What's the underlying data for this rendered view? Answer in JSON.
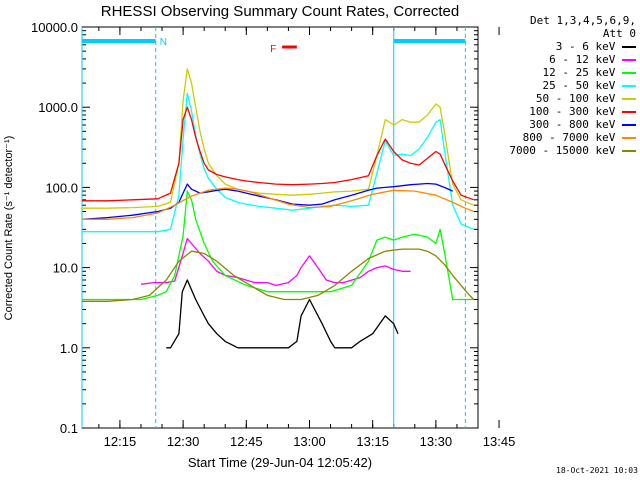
{
  "chart_data": {
    "type": "line",
    "title": "RHESSI Observing Summary Count Rates, Corrected",
    "xlabel": "Start Time (29-Jun-04 12:05:42)",
    "ylabel": "Corrected Count Rate (s⁻¹ detector⁻¹)",
    "yscale": "log",
    "ylim": [
      0.1,
      10000
    ],
    "xlim_minutes": [
      6.0,
      100.0
    ],
    "ytick_labels": [
      "0.1",
      "1.0",
      "10.0",
      "100.0",
      "1000.0",
      "10000.0"
    ],
    "ytick_values": [
      0.1,
      1,
      10,
      100,
      1000,
      10000
    ],
    "xtick_labels": [
      "12:15",
      "12:30",
      "12:45",
      "13:00",
      "13:15",
      "13:30",
      "13:45"
    ],
    "xtick_values": [
      15,
      30,
      45,
      60,
      75,
      90,
      105
    ],
    "legend_header": [
      "Det 1,3,4,5,6,9,",
      "Att 0"
    ],
    "legend_placement": "right, outside plot",
    "series": [
      {
        "name": "3 - 6 keV",
        "color": "#000000",
        "x": [
          6,
          23,
          26,
          27,
          29,
          29.8,
          31,
          33,
          35,
          36,
          38,
          40,
          43,
          47,
          50,
          55,
          57,
          58,
          60,
          63,
          65,
          66,
          70,
          72,
          75,
          78,
          80,
          81
        ],
        "y": [
          null,
          null,
          1.0,
          1.0,
          1.5,
          5.0,
          7.0,
          4.0,
          2.5,
          2.0,
          1.5,
          1.2,
          1.0,
          1.0,
          1.0,
          1.0,
          1.2,
          2.5,
          4.0,
          2.0,
          1.2,
          1.0,
          1.0,
          1.2,
          1.5,
          2.5,
          2.0,
          1.5
        ]
      },
      {
        "name": "6 - 12 keV",
        "color": "#ff00ff",
        "x": [
          20,
          23,
          26,
          28,
          29.8,
          31,
          32,
          34,
          36,
          38,
          40,
          43,
          47,
          50,
          52,
          55,
          57,
          58,
          60,
          62,
          64,
          66,
          68,
          72,
          74,
          76,
          78,
          80,
          82,
          84
        ],
        "y": [
          6.2,
          6.5,
          6.5,
          6.8,
          14,
          23,
          20,
          15,
          12,
          9,
          8,
          7.5,
          6.5,
          6.5,
          6,
          6.5,
          8,
          10,
          14,
          10,
          7,
          6.5,
          6.5,
          7.5,
          9,
          10,
          10.5,
          9.5,
          9.0,
          9.0
        ]
      },
      {
        "name": "12 - 25 keV",
        "color": "#00ff00",
        "x": [
          6,
          10,
          15,
          20,
          24,
          26,
          28,
          30,
          31,
          32,
          33,
          34,
          35,
          37,
          40,
          45,
          50,
          55,
          60,
          65,
          70,
          74,
          76,
          78,
          80,
          82,
          85,
          88,
          90,
          91,
          92,
          94,
          96,
          99
        ],
        "y": [
          4.0,
          4.0,
          4.0,
          4.0,
          4.5,
          5,
          8,
          25,
          90,
          70,
          40,
          28,
          20,
          12,
          8,
          6,
          5,
          5,
          5,
          5,
          6,
          12,
          22,
          24,
          22,
          24,
          26,
          24,
          20,
          30,
          16,
          4.0,
          4.0,
          4.0
        ]
      },
      {
        "name": "25 - 50 keV",
        "color": "#00ffff",
        "x": [
          6,
          12,
          18,
          24,
          27,
          29,
          30,
          31,
          32,
          33,
          34,
          35,
          36,
          38,
          40,
          43,
          45,
          48,
          52,
          56,
          60,
          63,
          66,
          70,
          74,
          76,
          78,
          80,
          82,
          84,
          86,
          88,
          90,
          91,
          92,
          94,
          96,
          99
        ],
        "y": [
          28,
          28,
          28,
          28,
          30,
          80,
          400,
          1500,
          900,
          450,
          260,
          170,
          130,
          95,
          75,
          65,
          62,
          58,
          55,
          52,
          55,
          58,
          60,
          58,
          60,
          150,
          380,
          250,
          260,
          250,
          300,
          420,
          650,
          700,
          300,
          60,
          35,
          30
        ]
      },
      {
        "name": "50 - 100 keV",
        "color": "#cccc00",
        "x": [
          6,
          12,
          18,
          24,
          27,
          29,
          30,
          31,
          32,
          33,
          34,
          35,
          36,
          38,
          40,
          43,
          45,
          48,
          52,
          56,
          60,
          63,
          66,
          70,
          74,
          76,
          78,
          80,
          82,
          84,
          86,
          88,
          90,
          91,
          92,
          94,
          96,
          99
        ],
        "y": [
          55,
          55,
          56,
          58,
          65,
          200,
          1200,
          3000,
          2000,
          1000,
          500,
          300,
          200,
          140,
          110,
          95,
          90,
          85,
          82,
          80,
          82,
          85,
          88,
          90,
          95,
          250,
          700,
          600,
          700,
          650,
          650,
          800,
          1100,
          1000,
          500,
          110,
          70,
          60
        ]
      },
      {
        "name": "100 - 300 keV",
        "color": "#ff0000",
        "x": [
          6,
          12,
          18,
          24,
          27,
          29,
          30,
          31,
          32,
          33,
          34,
          35,
          36,
          38,
          40,
          43,
          45,
          48,
          52,
          56,
          60,
          63,
          66,
          70,
          74,
          76,
          78,
          80,
          82,
          84,
          86,
          88,
          90,
          91,
          92,
          94,
          96,
          99
        ],
        "y": [
          68,
          68,
          70,
          72,
          85,
          200,
          700,
          1000,
          700,
          420,
          280,
          200,
          165,
          145,
          135,
          125,
          120,
          115,
          110,
          108,
          110,
          112,
          115,
          125,
          140,
          250,
          400,
          280,
          220,
          200,
          190,
          230,
          280,
          260,
          200,
          120,
          80,
          70
        ]
      },
      {
        "name": "300 - 800 keV",
        "color": "#0000ff",
        "x": [
          6,
          12,
          18,
          24,
          27,
          29,
          30,
          31,
          32,
          34,
          36,
          38,
          40,
          43,
          45,
          48,
          52,
          56,
          60,
          63,
          66,
          70,
          74,
          76,
          78,
          80,
          82,
          84,
          86,
          88,
          90,
          92,
          94
        ],
        "y": [
          40,
          42,
          45,
          50,
          55,
          65,
          85,
          110,
          95,
          85,
          88,
          92,
          95,
          90,
          85,
          78,
          70,
          62,
          60,
          62,
          70,
          80,
          92,
          98,
          100,
          102,
          105,
          108,
          110,
          112,
          110,
          100,
          90
        ]
      },
      {
        "name": "800 - 7000 keV",
        "color": "#ff8800",
        "x": [
          6,
          12,
          18,
          24,
          28,
          32,
          36,
          40,
          43,
          46,
          50,
          55,
          60,
          65,
          70,
          75,
          80,
          85,
          90,
          94,
          97,
          99
        ],
        "y": [
          40,
          40,
          42,
          48,
          60,
          78,
          92,
          98,
          95,
          88,
          75,
          62,
          56,
          58,
          68,
          82,
          92,
          90,
          80,
          65,
          55,
          50
        ]
      },
      {
        "name": "7000 - 15000 keV",
        "color": "#888800",
        "x": [
          6,
          12,
          18,
          22,
          26,
          29,
          32,
          35,
          38,
          42,
          46,
          50,
          54,
          58,
          62,
          66,
          70,
          74,
          78,
          82,
          86,
          88,
          90,
          92,
          94,
          96,
          98,
          99
        ],
        "y": [
          3.8,
          3.8,
          4.0,
          4.5,
          7,
          12,
          16,
          15,
          12,
          8,
          6,
          4.5,
          4.0,
          4.0,
          4.5,
          6,
          9,
          13,
          16,
          17,
          17,
          16,
          14,
          11,
          8,
          6,
          4.5,
          4.0
        ]
      }
    ],
    "annotations": [
      {
        "label": "N",
        "type": "night",
        "color": "#00ccff",
        "x_start": 6,
        "x_end": 23.5
      },
      {
        "label": "",
        "type": "night",
        "color": "#00ccff",
        "x_start": 80,
        "x_end": 97
      },
      {
        "label": "F",
        "type": "flare flag",
        "color": "#ff0000",
        "x_start": 53.5,
        "x_end": 57
      }
    ],
    "timestamp": "18-Oct-2021 10:03"
  }
}
